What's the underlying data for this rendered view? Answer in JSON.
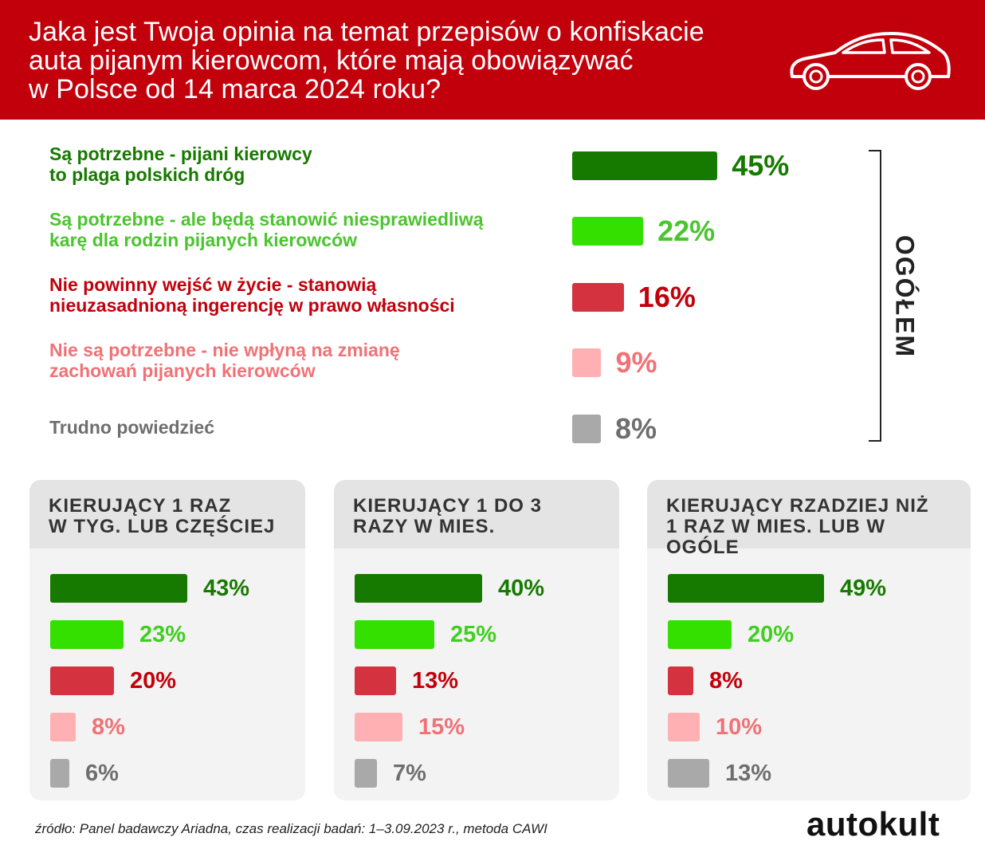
{
  "header": {
    "title_lines": [
      "Jaka jest Twoja opinia na temat przepisów o konfiskacie",
      "auta pijanym kierowcom, które mają obowiązywać",
      "w Polsce od 14 marca 2024 roku?"
    ],
    "icon": "car-icon"
  },
  "colors": {
    "header": "#c2000b",
    "dark_green": "#167a00",
    "light_green": "#33e000",
    "red": "#d3323e",
    "pink": "#ffb0b2",
    "gray": "#a9a9a9"
  },
  "chart_data": [
    {
      "type": "bar",
      "orientation": "horizontal",
      "group_label": "OGÓŁEM",
      "categories": [
        "Są potrzebne - pijani kierowcy to plaga polskich dróg",
        "Są potrzebne - ale będą stanowić niesprawiedliwą karę dla rodzin pijanych kierowców",
        "Nie powinny wejść w życie - stanowią nieuzasadnioną ingerencję w prawo własności",
        "Nie są potrzebne - nie wpłyną na zmianę zachowań pijanych kierowców",
        "Trudno powiedzieć"
      ],
      "category_lines": [
        [
          "Są potrzebne - pijani kierowcy",
          "to plaga polskich dróg"
        ],
        [
          "Są potrzebne - ale będą stanowić niesprawiedliwą",
          "karę dla rodzin pijanych kierowców"
        ],
        [
          "Nie powinny wejść w życie - stanowią",
          "nieuzasadnioną ingerencję w prawo własności"
        ],
        [
          "Nie są potrzebne - nie wpłyną na zmianę",
          "zachowań pijanych kierowców"
        ],
        [
          "Trudno powiedzieć"
        ]
      ],
      "values": [
        45,
        22,
        16,
        9,
        8
      ],
      "value_labels": [
        "45%",
        "22%",
        "16%",
        "9%",
        "8%"
      ],
      "colors": [
        "#167a00",
        "#33e000",
        "#d3323e",
        "#ffb0b2",
        "#a9a9a9"
      ],
      "label_colors": [
        "#167a00",
        "#4cc430",
        "#c2000b",
        "#f07276",
        "#6e6e6e"
      ]
    },
    {
      "type": "bar",
      "orientation": "horizontal",
      "title_lines": [
        "KIERUJĄCY 1 RAZ",
        "W TYG. LUB CZĘŚCIEJ"
      ],
      "values": [
        43,
        23,
        20,
        8,
        6
      ],
      "value_labels": [
        "43%",
        "23%",
        "20%",
        "8%",
        "6%"
      ]
    },
    {
      "type": "bar",
      "orientation": "horizontal",
      "title_lines": [
        "KIERUJĄCY 1 DO 3",
        "RAZY W MIES."
      ],
      "values": [
        40,
        25,
        13,
        15,
        7
      ],
      "value_labels": [
        "40%",
        "25%",
        "13%",
        "15%",
        "7%"
      ]
    },
    {
      "type": "bar",
      "orientation": "horizontal",
      "title_lines": [
        "KIERUJĄCY RZADZIEJ NIŻ",
        "1 RAZ W MIES. LUB W OGÓLE"
      ],
      "values": [
        49,
        20,
        8,
        10,
        13
      ],
      "value_labels": [
        "49%",
        "20%",
        "8%",
        "10%",
        "13%"
      ]
    }
  ],
  "footer": {
    "source": "źródło: Panel badawczy Ariadna, czas realizacji badań: 1–3.09.2023 r., metoda CAWI",
    "brand": "autokult"
  }
}
